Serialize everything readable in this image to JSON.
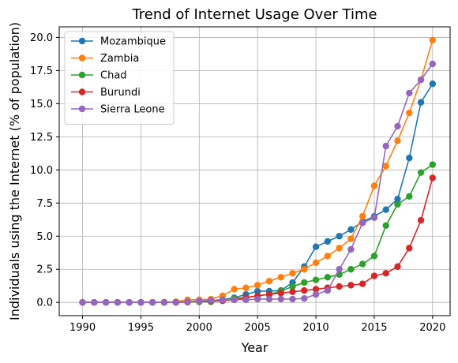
{
  "chart_data": {
    "type": "line",
    "title": "Trend of Internet Usage Over Time",
    "xlabel": "Year",
    "ylabel": "Individuals using the Internet (% of population)",
    "xlim": [
      1988,
      2021.5
    ],
    "ylim": [
      -1.0,
      20.8
    ],
    "xticks": [
      1990,
      1995,
      2000,
      2005,
      2010,
      2015,
      2020
    ],
    "xtick_labels": [
      "1990",
      "1995",
      "2000",
      "2005",
      "2010",
      "2015",
      "2020"
    ],
    "yticks": [
      0.0,
      2.5,
      5.0,
      7.5,
      10.0,
      12.5,
      15.0,
      17.5,
      20.0
    ],
    "ytick_labels": [
      "0.0",
      "2.5",
      "5.0",
      "7.5",
      "10.0",
      "12.5",
      "15.0",
      "17.5",
      "20.0"
    ],
    "grid": true,
    "legend_position": "top-left",
    "x": [
      1990,
      1991,
      1992,
      1993,
      1994,
      1995,
      1996,
      1997,
      1998,
      1999,
      2000,
      2001,
      2002,
      2003,
      2004,
      2005,
      2006,
      2007,
      2008,
      2009,
      2010,
      2011,
      2012,
      2013,
      2014,
      2015,
      2016,
      2017,
      2018,
      2019,
      2020
    ],
    "series": [
      {
        "name": "Mozambique",
        "color": "#1f77b4",
        "values": [
          0,
          0,
          0,
          0,
          0,
          0,
          0,
          0,
          0.01,
          0.05,
          0.1,
          0.15,
          0.2,
          0.35,
          0.6,
          0.85,
          0.85,
          0.9,
          1.5,
          2.7,
          4.2,
          4.6,
          5.0,
          5.5,
          6.1,
          6.5,
          7.0,
          7.8,
          10.9,
          15.1,
          16.5
        ]
      },
      {
        "name": "Zambia",
        "color": "#ff7f0e",
        "values": [
          0,
          0,
          0,
          0,
          0,
          0,
          0,
          0.02,
          0.05,
          0.2,
          0.2,
          0.25,
          0.5,
          1.0,
          1.1,
          1.3,
          1.6,
          1.9,
          2.2,
          2.5,
          3.0,
          3.5,
          4.1,
          4.8,
          6.5,
          8.8,
          10.3,
          12.2,
          14.3,
          16.8,
          19.8
        ]
      },
      {
        "name": "Chad",
        "color": "#2ca02c",
        "values": [
          0,
          0,
          0,
          0,
          0,
          0,
          0,
          0,
          0,
          0.02,
          0.04,
          0.05,
          0.17,
          0.3,
          0.36,
          0.5,
          0.6,
          0.85,
          1.2,
          1.5,
          1.7,
          1.9,
          2.1,
          2.5,
          2.9,
          3.5,
          5.8,
          7.4,
          8.0,
          9.8,
          10.4
        ]
      },
      {
        "name": "Burundi",
        "color": "#d62728",
        "values": [
          0,
          0,
          0,
          0,
          0,
          0,
          0,
          0,
          0,
          0.02,
          0.08,
          0.1,
          0.12,
          0.2,
          0.35,
          0.5,
          0.6,
          0.7,
          0.8,
          0.9,
          1.0,
          1.1,
          1.2,
          1.3,
          1.4,
          2.0,
          2.2,
          2.7,
          4.1,
          6.2,
          9.4
        ]
      },
      {
        "name": "Sierra Leone",
        "color": "#9467bd",
        "values": [
          0,
          0,
          0,
          0,
          0,
          0,
          0,
          0,
          0,
          0.05,
          0.1,
          0.15,
          0.2,
          0.2,
          0.2,
          0.25,
          0.25,
          0.25,
          0.25,
          0.3,
          0.6,
          0.9,
          2.5,
          4.0,
          6.0,
          6.4,
          11.8,
          13.3,
          15.8,
          16.8,
          18.0
        ]
      }
    ]
  }
}
